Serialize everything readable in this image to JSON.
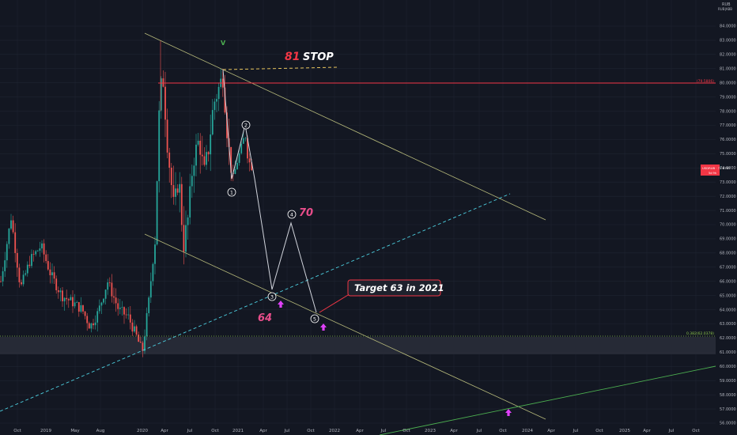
{
  "chart_data": {
    "type": "candlestick",
    "symbol": "USDRUB",
    "currency": "RUB",
    "currency_sub": "RUB|ABB",
    "price_tag": "USDRUB · 73.8787",
    "price_tag_sub": "5d 9h",
    "y_range": [
      55.5,
      85
    ],
    "y_ticks": [
      "84.0000",
      "83.0000",
      "82.0000",
      "81.0000",
      "80.0000",
      "79.0000",
      "78.0000",
      "77.0000",
      "76.0000",
      "75.0000",
      "74.0000",
      "73.0000",
      "72.0000",
      "71.0000",
      "70.0000",
      "69.0000",
      "68.0000",
      "67.0000",
      "66.0000",
      "65.0000",
      "64.0000",
      "63.0000",
      "62.0000",
      "61.0000",
      "60.0000",
      "59.0000",
      "58.0000",
      "57.0000",
      "56.0000"
    ],
    "x_ticks": [
      "Oct",
      "2019",
      "May",
      "Aug",
      "2020",
      "Apr",
      "Jul",
      "Oct",
      "2021",
      "Apr",
      "Jul",
      "Oct",
      "2022",
      "Apr",
      "Jul",
      "Oct",
      "2023",
      "Apr",
      "Jul",
      "Oct",
      "2024",
      "Apr",
      "Jul",
      "Oct",
      "2025",
      "Apr",
      "Jul",
      "Oct"
    ],
    "grid": true,
    "levels": [
      {
        "value": 79.85,
        "label": "(79.5806)",
        "color": "#f23645"
      },
      {
        "value": 62.1,
        "label": "0.382(62.0378)",
        "color": "#8bc34a"
      }
    ],
    "annotations": {
      "stop_number": "81",
      "stop_text": "STOP",
      "peak_mark": "V",
      "wave_4_target": "70",
      "wave_3_target": "64",
      "target_callout": "Target 63 in 2021",
      "waves": [
        "1",
        "2",
        "3",
        "4",
        "5"
      ]
    },
    "colors": {
      "background": "#131722",
      "up": "#26a69a",
      "down": "#ef5350",
      "resistance": "#f23645",
      "trendline": "#b5b87a",
      "dashed_line": "#4dd0e1",
      "projection": "#d1d4dc",
      "wave_target": "#e84d8a",
      "arrow": "#e040fb",
      "green_line": "#4caf50"
    }
  }
}
